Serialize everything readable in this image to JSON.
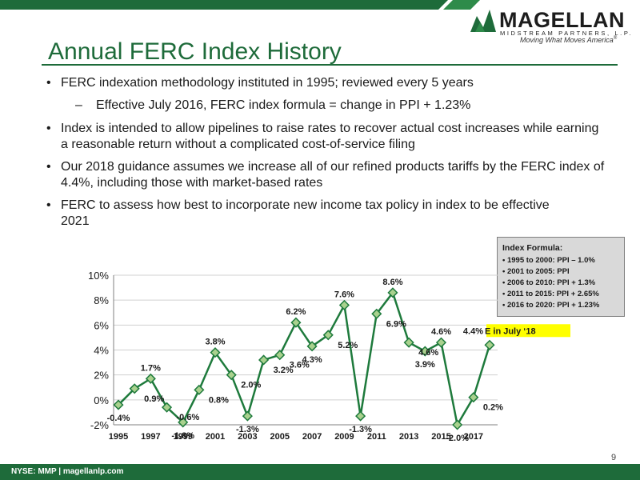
{
  "header": {
    "logo_name": "MAGELLAN",
    "logo_sub": "MIDSTREAM PARTNERS, L.P.",
    "logo_tagline": "Moving What Moves America",
    "title": "Annual FERC Index History"
  },
  "bullets": [
    {
      "text": "FERC indexation methodology instituted in 1995; reviewed every 5 years"
    },
    {
      "text": "Effective July 2016, FERC index formula = change in PPI + 1.23%",
      "level": 2
    },
    {
      "text": "Index is intended to allow pipelines to raise rates to recover actual cost increases while earning a reasonable return without a complicated cost-of-service filing"
    },
    {
      "text": "Our 2018 guidance assumes we increase all of our refined products tariffs by the FERC index of 4.4%, including those with market-based rates"
    },
    {
      "text": "FERC to assess how best to incorporate new income tax policy in index to be effective 2021"
    }
  ],
  "formula_box": {
    "title": "Index Formula:",
    "items": [
      "1995 to 2000:  PPI – 1.0%",
      "2001 to 2005:  PPI",
      "2006 to 2010:  PPI + 1.3%",
      "2011 to 2015:  PPI + 2.65%",
      "2016 to 2020:  PPI + 1.23%"
    ]
  },
  "chart_data": {
    "type": "line",
    "x": [
      1995,
      1996,
      1997,
      1998,
      1999,
      2000,
      2001,
      2002,
      2003,
      2004,
      2005,
      2006,
      2007,
      2008,
      2009,
      2010,
      2011,
      2012,
      2013,
      2014,
      2015,
      2016,
      2017,
      2018
    ],
    "values": [
      -0.4,
      0.9,
      1.7,
      -0.6,
      -1.8,
      0.8,
      3.8,
      2.0,
      -1.3,
      3.2,
      3.6,
      6.2,
      4.3,
      5.2,
      7.6,
      -1.3,
      6.9,
      8.6,
      4.6,
      3.9,
      4.6,
      -2.0,
      0.2,
      4.4
    ],
    "labels": [
      "-0.4%",
      "0.9%",
      "1.7%",
      "-0.6%",
      "-1.8%",
      "0.8%",
      "3.8%",
      "2.0%",
      "-1.3%",
      "3.2%",
      "3.6%",
      "6.2%",
      "4.3%",
      "5.2%",
      "7.6%",
      "-1.3%",
      "6.9%",
      "8.6%",
      "4.6%",
      "3.9%",
      "4.6%",
      "-2.0%",
      "0.2%",
      "4.4%"
    ],
    "ylim": [
      -2,
      10
    ],
    "yticks": [
      "10%",
      "8%",
      "6%",
      "4%",
      "2%",
      "0%",
      "-2%"
    ],
    "xticks": [
      "1995",
      "1997",
      "1999",
      "2001",
      "2003",
      "2005",
      "2007",
      "2009",
      "2011",
      "2013",
      "2015",
      "2017"
    ],
    "annotation": "E in July ‘18",
    "grid": true,
    "colors": {
      "line": "#1e7a3c",
      "marker": "#a9d18e",
      "highlight": "#ffff00"
    }
  },
  "footer": {
    "left": "NYSE: MMP   |   magellanlp.com",
    "page": "9"
  }
}
